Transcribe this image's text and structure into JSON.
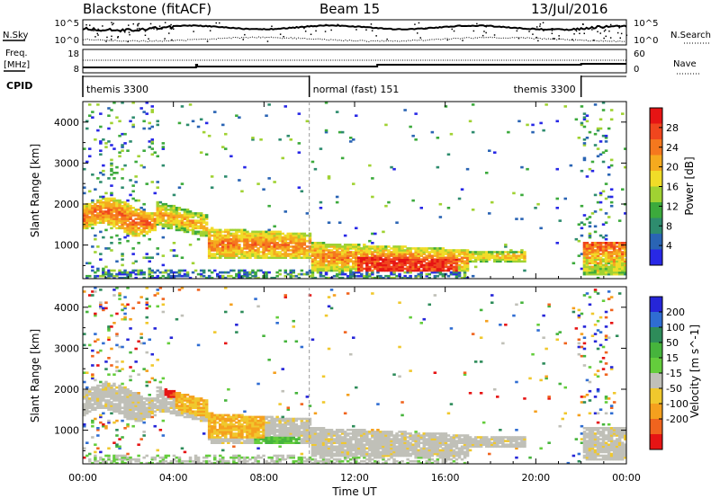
{
  "header": {
    "station": "Blackstone (fitACF)",
    "beam": "Beam 15",
    "date": "13/Jul/2016"
  },
  "noise_panel": {
    "left_label": "N.Sky",
    "right_label": "N.Search",
    "left_ticks": [
      "10^5",
      "10^0"
    ],
    "right_ticks": [
      "10^5",
      "10^0"
    ]
  },
  "freq_panel": {
    "left_label_1": "Freq.",
    "left_label_2": "[MHz]",
    "left_ticks": [
      "18",
      "8"
    ],
    "right_label": "Nave",
    "right_ticks": [
      "60",
      "0"
    ]
  },
  "cpid_panel": {
    "label": "CPID",
    "segments": [
      {
        "start_hour": 0,
        "end_hour": 10,
        "text": "themis 3300",
        "align": "left"
      },
      {
        "start_hour": 10,
        "end_hour": 22,
        "text": "normal (fast) 151",
        "align": "left"
      },
      {
        "start_hour": 10,
        "end_hour": 22,
        "text": "themis 3300",
        "align": "right"
      }
    ]
  },
  "colors": {
    "power": [
      "#2828e6",
      "#2a64b4",
      "#2e8c6e",
      "#3caa3c",
      "#a0d232",
      "#f0dc28",
      "#f5aa1e",
      "#f5781e",
      "#f0461e",
      "#e61414"
    ],
    "velocity": [
      "#2626d8",
      "#2f6dd2",
      "#2e8c5a",
      "#46b43c",
      "#64cd3c",
      "#c0c0b8",
      "#f0c82d",
      "#f5a01e",
      "#f0641e",
      "#e61414"
    ]
  },
  "chart_data": [
    {
      "type": "heatmap",
      "name": "power",
      "ylabel": "Slant Range [km]",
      "y_ticks": [
        "1000",
        "2000",
        "3000",
        "4000"
      ],
      "ylim": [
        180,
        4500
      ],
      "x_ticks": [
        "00:00",
        "04:00",
        "08:00",
        "12:00",
        "16:00",
        "20:00",
        "00:00"
      ],
      "xlim_hours": [
        0,
        24
      ],
      "colorbar": {
        "label": "Power [dB]",
        "tick_labels": [
          "4",
          "8",
          "12",
          "16",
          "20",
          "24",
          "28"
        ],
        "range": [
          0,
          30
        ]
      }
    },
    {
      "type": "heatmap",
      "name": "velocity",
      "ylabel": "Slant Range [km]",
      "y_ticks": [
        "1000",
        "2000",
        "3000",
        "4000"
      ],
      "ylim": [
        180,
        4500
      ],
      "x_ticks": [
        "00:00",
        "04:00",
        "08:00",
        "12:00",
        "16:00",
        "20:00",
        "00:00"
      ],
      "xlim_hours": [
        0,
        24
      ],
      "xlabel": "Time UT",
      "colorbar": {
        "label": "Velocity [m s^-1]",
        "tick_labels": [
          "200",
          "100",
          "50",
          "15",
          "-15",
          "-50",
          "-100",
          "-200"
        ],
        "range": [
          -250,
          250
        ]
      }
    }
  ]
}
